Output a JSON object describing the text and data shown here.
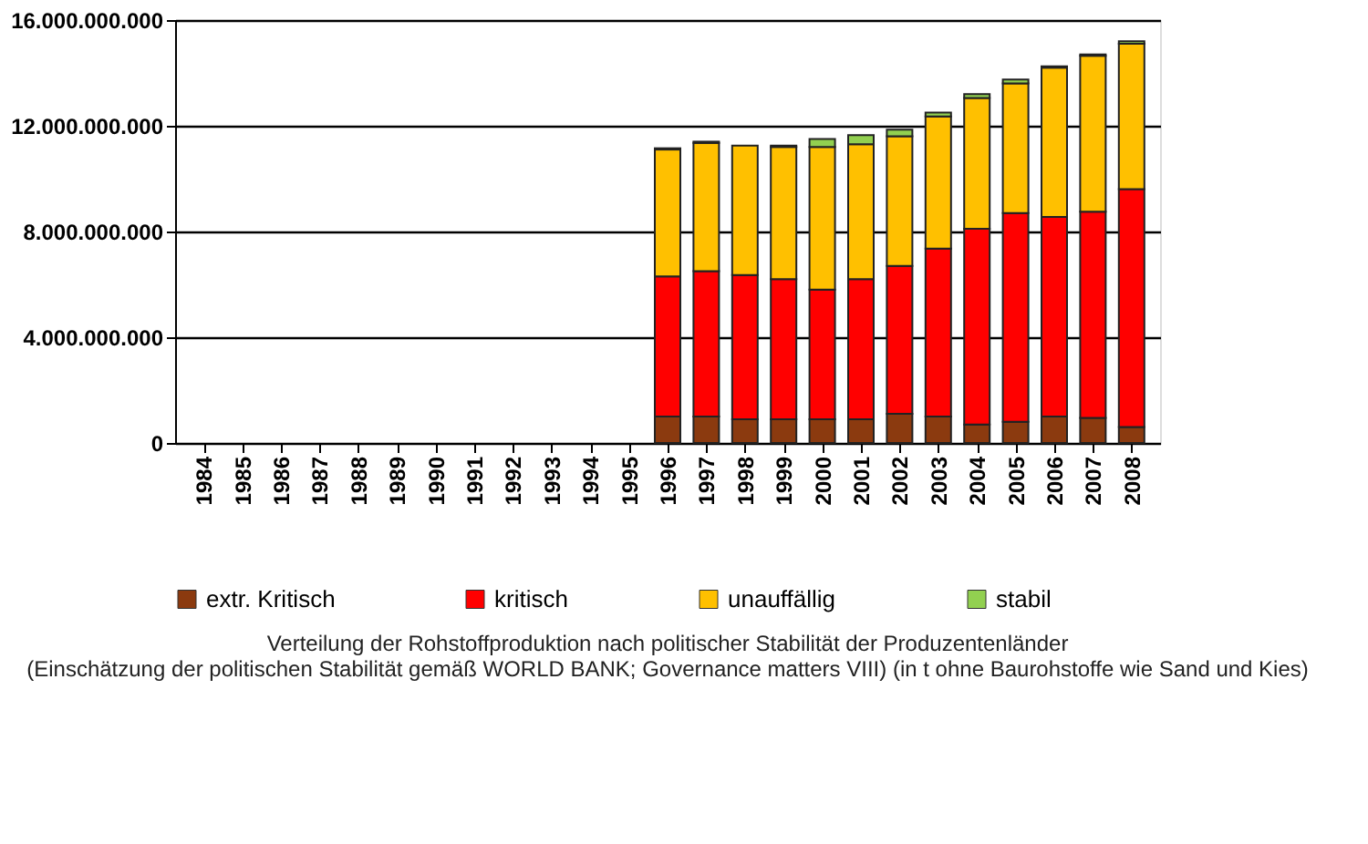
{
  "chart_data": {
    "type": "bar",
    "stacked": true,
    "categories": [
      "1984",
      "1985",
      "1986",
      "1987",
      "1988",
      "1989",
      "1990",
      "1991",
      "1992",
      "1993",
      "1994",
      "1995",
      "1996",
      "1997",
      "1998",
      "1999",
      "2000",
      "2001",
      "2002",
      "2003",
      "2004",
      "2005",
      "2006",
      "2007",
      "2008"
    ],
    "series": [
      {
        "name": "extr. Kritisch",
        "color": "#8b3a0f",
        "values": [
          null,
          null,
          null,
          null,
          null,
          null,
          null,
          null,
          null,
          null,
          null,
          null,
          1000000000,
          1000000000,
          900000000,
          900000000,
          900000000,
          900000000,
          1100000000,
          1000000000,
          700000000,
          800000000,
          1000000000,
          950000000,
          600000000
        ]
      },
      {
        "name": "kritisch",
        "color": "#ff0000",
        "values": [
          null,
          null,
          null,
          null,
          null,
          null,
          null,
          null,
          null,
          null,
          null,
          null,
          5300000000,
          5500000000,
          5450000000,
          5300000000,
          4900000000,
          5300000000,
          5600000000,
          6350000000,
          7400000000,
          7900000000,
          7550000000,
          7800000000,
          9000000000
        ]
      },
      {
        "name": "unauffällig",
        "color": "#ffc000",
        "values": [
          null,
          null,
          null,
          null,
          null,
          null,
          null,
          null,
          null,
          null,
          null,
          null,
          4800000000,
          4850000000,
          4900000000,
          5000000000,
          5400000000,
          5100000000,
          4900000000,
          5000000000,
          4950000000,
          4900000000,
          5650000000,
          5900000000,
          5500000000
        ]
      },
      {
        "name": "stabil",
        "color": "#92d050",
        "values": [
          null,
          null,
          null,
          null,
          null,
          null,
          null,
          null,
          null,
          null,
          null,
          null,
          50000000,
          50000000,
          null,
          50000000,
          300000000,
          350000000,
          250000000,
          150000000,
          150000000,
          150000000,
          50000000,
          50000000,
          100000000
        ]
      }
    ],
    "ylim": [
      0,
      16000000000
    ],
    "yticks": [
      {
        "value": 0,
        "label": "0"
      },
      {
        "value": 4000000000,
        "label": "4.000.000.000"
      },
      {
        "value": 8000000000,
        "label": "8.000.000.000"
      },
      {
        "value": 12000000000,
        "label": "12.000.000.000"
      },
      {
        "value": 16000000000,
        "label": "16.000.000.000"
      }
    ],
    "grid": "y",
    "legend": "bottom",
    "annotations": [
      "Verteilung der Rohstoffproduktion nach politischer Stabilität der Produzentenländer",
      "(Einschätzung der politischen Stabilität gemäß WORLD BANK; Governance matters VIII) (in t ohne Baurohstoffe wie Sand und Kies)"
    ]
  }
}
